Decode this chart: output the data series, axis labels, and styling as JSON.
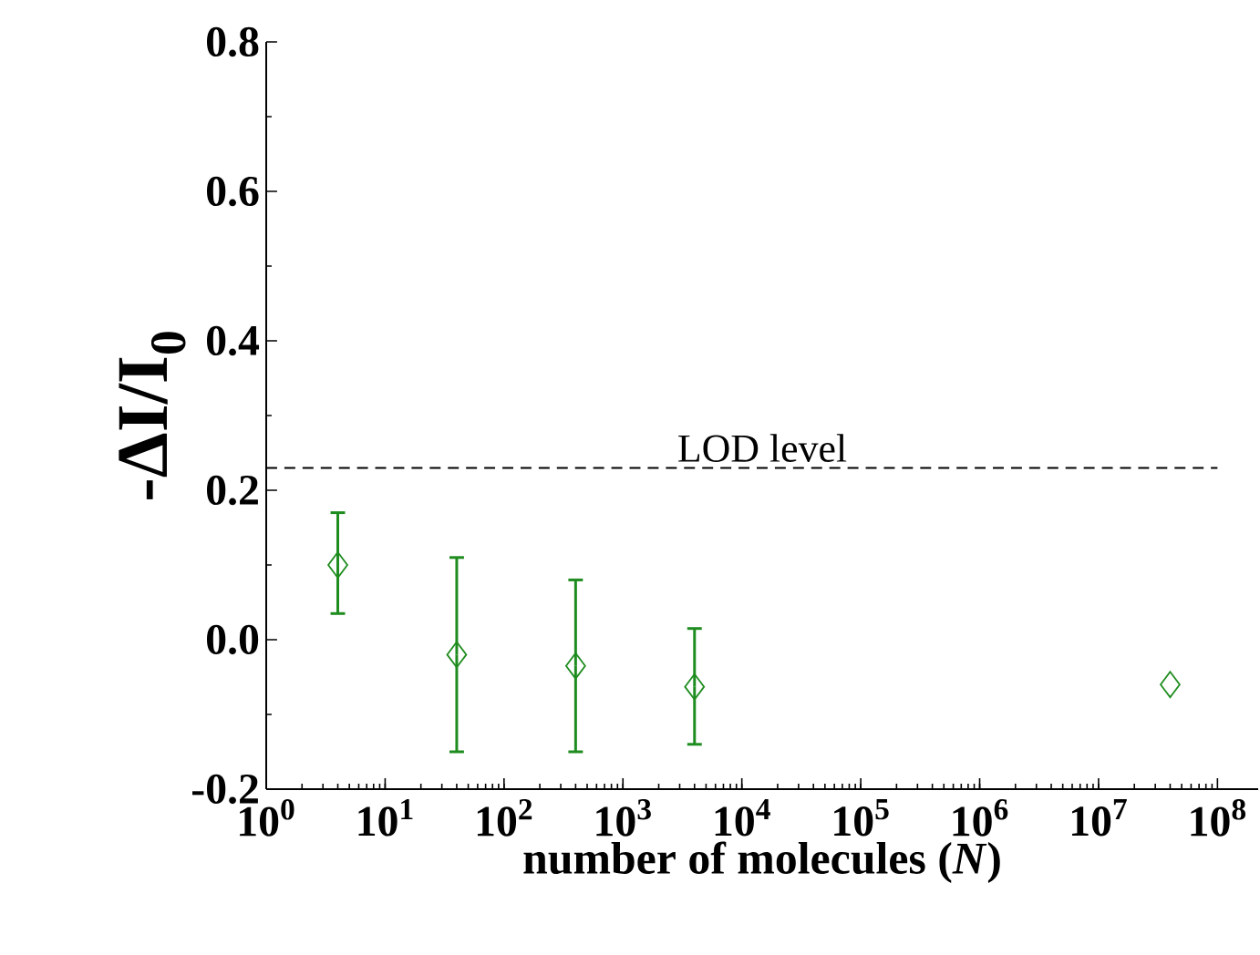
{
  "chart_data": {
    "type": "scatter",
    "xlabel": "number of molecules (*N*)",
    "ylabel": "-ΔI/I$_{0}$",
    "log": "x",
    "xlim": [
      1,
      220000000
    ],
    "ylim": [
      -0.2,
      0.8
    ],
    "xticks": [
      {
        "value": 1,
        "label": "10$^{0}$"
      },
      {
        "value": 10,
        "label": "10$^{1}$"
      },
      {
        "value": 100,
        "label": "10$^{2}$"
      },
      {
        "value": 1000,
        "label": "10$^{3}$"
      },
      {
        "value": 10000,
        "label": "10$^{4}$"
      },
      {
        "value": 100000,
        "label": "10$^{5}$"
      },
      {
        "value": 1000000,
        "label": "10$^{6}$"
      },
      {
        "value": 10000000,
        "label": "10$^{7}$"
      },
      {
        "value": 100000000,
        "label": "10$^{8}$"
      }
    ],
    "yticks": [
      {
        "value": -0.2,
        "label": "-0.2"
      },
      {
        "value": 0,
        "label": "0.0"
      },
      {
        "value": 0.2,
        "label": "0.2"
      },
      {
        "value": 0.4,
        "label": "0.4"
      },
      {
        "value": 0.6,
        "label": "0.6"
      },
      {
        "value": 0.8,
        "label": "0.8"
      }
    ],
    "series": [
      {
        "color": "#1e8c1e",
        "x": [
          4,
          40,
          400,
          4000,
          40000000
        ],
        "values": [
          0.1,
          -0.02,
          -0.035,
          -0.063,
          -0.06
        ],
        "errors": [
          [
            0.035,
            0.17
          ],
          [
            -0.15,
            0.11
          ],
          [
            -0.15,
            0.08
          ],
          [
            -0.14,
            0.015
          ],
          null
        ]
      }
    ],
    "marker": "diamond",
    "grid": false,
    "ref_lines": [
      {
        "axis": "y",
        "value": 0.23,
        "label": "LOD level",
        "color": "#000000",
        "line_style": "dashed"
      }
    ]
  }
}
